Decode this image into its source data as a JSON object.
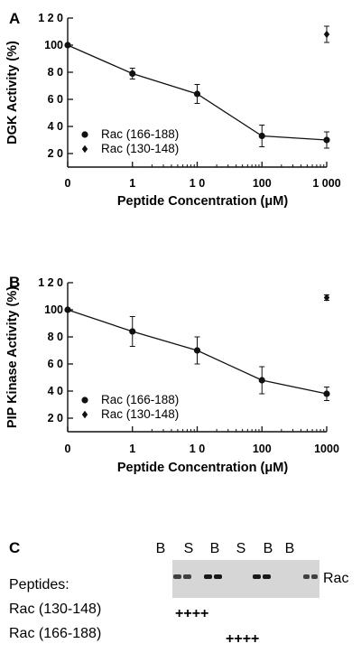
{
  "chart_data": [
    {
      "panel": "A",
      "type": "line",
      "xlabel": "Peptide Concentration (μM)",
      "ylabel": "DGK Activity (%)",
      "x_scale": "log",
      "x_ticks": [
        "0",
        "1",
        "1 0",
        "100",
        "1 000"
      ],
      "x_tick_values": [
        0,
        1,
        10,
        100,
        1000
      ],
      "y_ticks": [
        "2 0",
        "4 0",
        "6 0",
        "8 0",
        "100",
        "1 2 0"
      ],
      "y_tick_values": [
        20,
        40,
        60,
        80,
        100,
        120
      ],
      "ylim": [
        10,
        120
      ],
      "legend_position": "lower-left",
      "series": [
        {
          "name": "Rac (166-188)",
          "marker": "circle",
          "connected": true,
          "x": [
            0,
            1,
            10,
            100,
            1000
          ],
          "y": [
            100,
            79,
            64,
            33,
            30
          ],
          "error": [
            0,
            4,
            7,
            8,
            6
          ]
        },
        {
          "name": "Rac (130-148)",
          "marker": "diamond",
          "connected": false,
          "x": [
            1000
          ],
          "y": [
            108
          ],
          "error": [
            6
          ]
        }
      ]
    },
    {
      "panel": "B",
      "type": "line",
      "xlabel": "Peptide Concentration (μM)",
      "ylabel": "PIP Kinase Activity (%)",
      "x_scale": "log",
      "x_ticks": [
        "0",
        "1",
        "1 0",
        "100",
        "1000"
      ],
      "x_tick_values": [
        0,
        1,
        10,
        100,
        1000
      ],
      "y_ticks": [
        "2 0",
        "4 0",
        "6 0",
        "8 0",
        "100",
        "1 2 0"
      ],
      "y_tick_values": [
        20,
        40,
        60,
        80,
        100,
        120
      ],
      "ylim": [
        10,
        120
      ],
      "legend_position": "lower-left",
      "series": [
        {
          "name": "Rac (166-188)",
          "marker": "circle",
          "connected": true,
          "x": [
            0,
            1,
            10,
            100,
            1000
          ],
          "y": [
            100,
            84,
            70,
            48,
            38
          ],
          "error": [
            0,
            11,
            10,
            10,
            5
          ]
        },
        {
          "name": "Rac (130-148)",
          "marker": "diamond",
          "connected": false,
          "x": [
            1000
          ],
          "y": [
            109
          ],
          "error": [
            2
          ]
        }
      ]
    }
  ],
  "panel_c": {
    "letter": "C",
    "lane_labels": [
      "B",
      "S",
      "B",
      "S",
      "B",
      "B"
    ],
    "band_label": "Rac",
    "peptides_title": "Peptides:",
    "rows": [
      {
        "label": "Rac (130-148)",
        "marks": "++++"
      },
      {
        "label": "Rac (166-188)",
        "marks": "++++"
      }
    ],
    "bands": [
      {
        "lane": 1,
        "intensity": 0.75,
        "width": 1.0
      },
      {
        "lane": 3,
        "intensity": 0.9,
        "width": 1.0
      },
      {
        "lane": 5,
        "intensity": 0.9,
        "width": 1.0
      },
      {
        "lane": 6,
        "intensity": 0.75,
        "width": 0.8
      }
    ]
  }
}
